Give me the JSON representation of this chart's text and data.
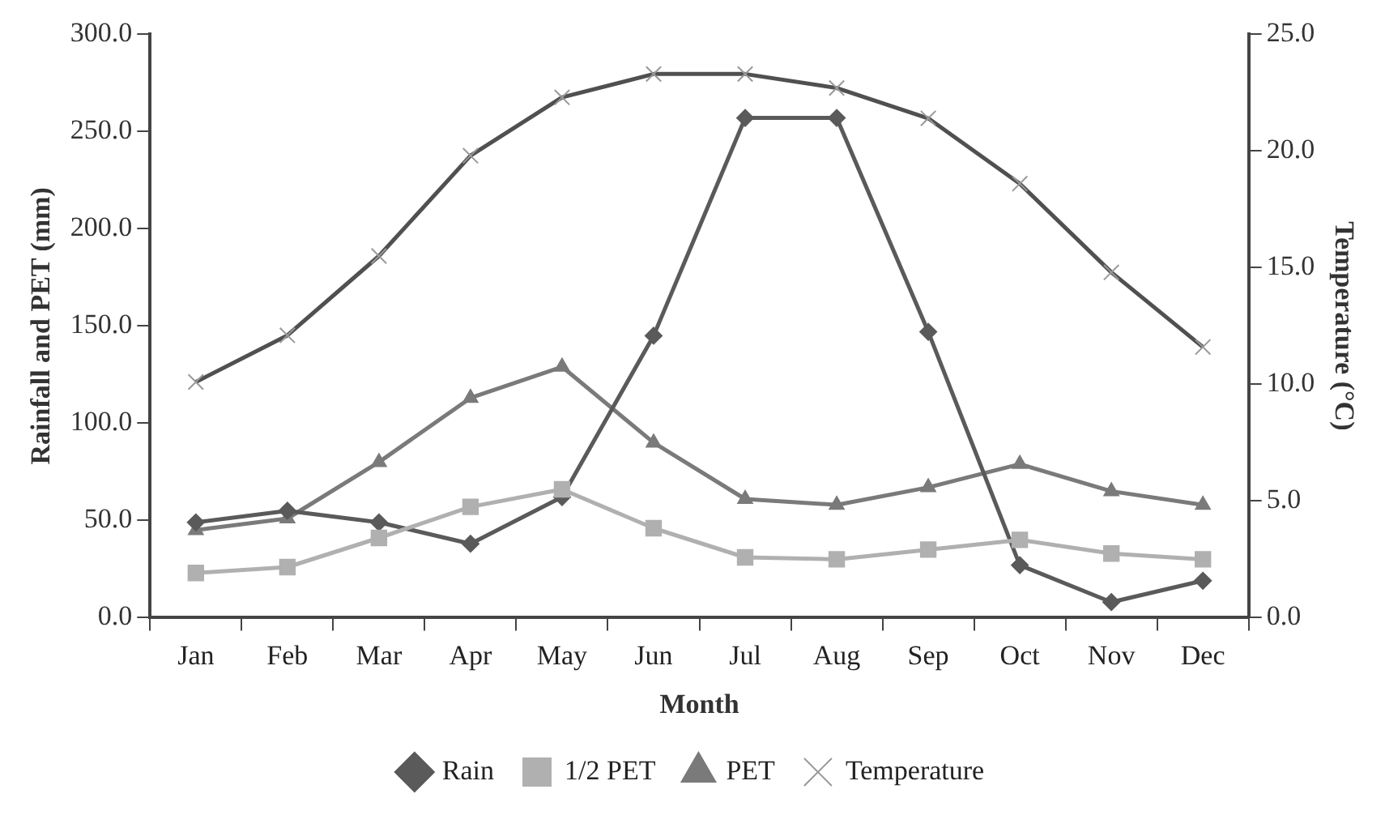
{
  "chart_data": {
    "type": "line",
    "xlabel": "Month",
    "ylabel": "Rainfall and PET (mm)",
    "y2label": "Temperature (°C)",
    "categories": [
      "Jan",
      "Feb",
      "Mar",
      "Apr",
      "May",
      "Jun",
      "Jul",
      "Aug",
      "Sep",
      "Oct",
      "Nov",
      "Dec"
    ],
    "series": [
      {
        "name": "Rain",
        "color": "#5a5a5a",
        "marker": "diamond",
        "values": [
          49,
          55,
          49,
          38,
          62,
          145,
          257,
          257,
          147,
          27,
          8,
          19
        ]
      },
      {
        "name": "1/2 PET",
        "color": "#b0b0b0",
        "marker": "square",
        "values": [
          23,
          26,
          41,
          57,
          66,
          46,
          31,
          30,
          35,
          40,
          33,
          30
        ]
      },
      {
        "name": "PET",
        "color": "#7a7a7a",
        "marker": "triangle",
        "values": [
          45,
          51,
          80,
          113,
          129,
          90,
          61,
          58,
          67,
          79,
          65,
          58
        ]
      },
      {
        "name": "Temperature",
        "color": "#505050",
        "marker": "cross",
        "axis": "y2",
        "values": [
          10.1,
          12.1,
          15.5,
          19.8,
          22.3,
          23.3,
          23.3,
          22.7,
          21.4,
          18.6,
          14.8,
          11.6
        ]
      }
    ],
    "ylim": [
      0,
      300
    ],
    "yticks": [
      {
        "value": 0,
        "label": "0.0"
      },
      {
        "value": 50,
        "label": "50.0"
      },
      {
        "value": 100,
        "label": "100.0"
      },
      {
        "value": 150,
        "label": "150.0"
      },
      {
        "value": 200,
        "label": "200.0"
      },
      {
        "value": 250,
        "label": "250.0"
      },
      {
        "value": 300,
        "label": "300.0"
      }
    ],
    "y2lim": [
      0,
      25
    ],
    "y2ticks": [
      {
        "value": 0,
        "label": "0.0"
      },
      {
        "value": 5,
        "label": "5.0"
      },
      {
        "value": 10,
        "label": "10.0"
      },
      {
        "value": 15,
        "label": "15.0"
      },
      {
        "value": 20,
        "label": "20.0"
      },
      {
        "value": 25,
        "label": "25.0"
      }
    ],
    "grid": false,
    "legend": "bottom",
    "line_style": "solid"
  }
}
